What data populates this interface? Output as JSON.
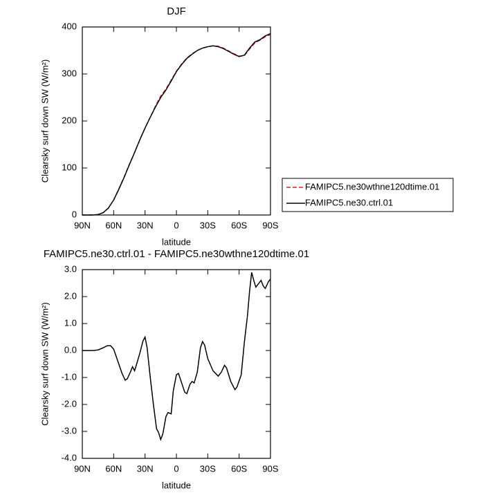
{
  "chart_data": [
    {
      "type": "line",
      "title": "DJF",
      "xlabel": "latitude",
      "ylabel": "Clearsky surf down SW (W/m²)",
      "x": [
        90,
        85,
        80,
        75,
        70,
        65,
        60,
        55,
        50,
        45,
        40,
        35,
        30,
        25,
        20,
        15,
        10,
        5,
        0,
        -5,
        -10,
        -15,
        -20,
        -25,
        -30,
        -35,
        -40,
        -45,
        -50,
        -55,
        -60,
        -65,
        -70,
        -75,
        -80,
        -85,
        -90
      ],
      "series": [
        {
          "name": "FAMIPC5.ne30wthne120dtime.01",
          "color": "#e02020",
          "dashed": true,
          "values": [
            0,
            0,
            0,
            1,
            5,
            15,
            32,
            56,
            81,
            108,
            133,
            160,
            185,
            208,
            232,
            253,
            268,
            287,
            306,
            321,
            334,
            343,
            350,
            355,
            358,
            360,
            359,
            355,
            349,
            343,
            338,
            339,
            353,
            366,
            372,
            379,
            384
          ]
        },
        {
          "name": "FAMIPC5.ne30.ctrl.01",
          "color": "#000000",
          "dashed": false,
          "values": [
            0,
            0,
            0,
            1,
            5,
            15,
            32,
            55,
            80,
            107,
            133,
            160,
            185,
            208,
            230,
            250,
            266,
            285,
            305,
            320,
            333,
            342,
            350,
            355,
            358,
            360,
            358,
            354,
            348,
            342,
            337,
            340,
            355,
            368,
            373,
            381,
            386
          ]
        }
      ],
      "xlim": [
        90,
        -90
      ],
      "xticks": [
        {
          "value": 90,
          "label": "90N"
        },
        {
          "value": 60,
          "label": "60N"
        },
        {
          "value": 30,
          "label": "30N"
        },
        0,
        {
          "value": -30,
          "label": "30S"
        },
        {
          "value": -60,
          "label": "60S"
        },
        {
          "value": -90,
          "label": "90S"
        }
      ],
      "ylim": [
        0,
        400
      ],
      "yticks": [
        0,
        100,
        200,
        300,
        400
      ],
      "legend": "outside-right"
    },
    {
      "type": "line",
      "title": "FAMIPC5.ne30.ctrl.01 - FAMIPC5.ne30wthne120dtime.01",
      "xlabel": "latitude",
      "ylabel": "Clearsky surf down SW (W/m²)",
      "x": [
        90,
        80,
        75,
        70,
        66,
        63,
        60,
        56,
        52,
        49,
        47,
        44,
        42,
        40,
        38,
        35,
        32,
        30,
        28,
        25,
        22,
        19,
        17,
        15,
        13,
        10,
        8,
        5,
        3,
        0,
        -2,
        -5,
        -8,
        -10,
        -13,
        -15,
        -17,
        -20,
        -23,
        -25,
        -27,
        -30,
        -35,
        -40,
        -43,
        -46,
        -48,
        -52,
        -56,
        -58,
        -62,
        -65,
        -68,
        -70,
        -72,
        -74,
        -76,
        -78,
        -81,
        -83,
        -85,
        -88,
        -90
      ],
      "series": [
        {
          "name": "FAMIPC5.ne30.ctrl.01 - FAMIPC5.ne30wthne120dtime.01",
          "color": "#000000",
          "dashed": false,
          "values": [
            0,
            0,
            0.02,
            0.1,
            0.18,
            0.18,
            0.05,
            -0.4,
            -0.85,
            -1.1,
            -1.05,
            -0.8,
            -0.6,
            -0.75,
            -0.5,
            -0.1,
            0.35,
            0.5,
            0.1,
            -1.0,
            -2.0,
            -2.9,
            -3.05,
            -3.3,
            -3.1,
            -2.45,
            -2.3,
            -2.35,
            -1.5,
            -0.9,
            -0.85,
            -1.2,
            -1.55,
            -1.6,
            -1.25,
            -1.15,
            -1.2,
            -0.8,
            0.1,
            0.33,
            0.2,
            -0.3,
            -0.75,
            -0.95,
            -0.8,
            -0.55,
            -0.65,
            -1.15,
            -1.45,
            -1.35,
            -0.9,
            0.3,
            1.3,
            2.2,
            2.9,
            2.6,
            2.35,
            2.45,
            2.6,
            2.4,
            2.3,
            2.55,
            2.65
          ]
        }
      ],
      "xlim": [
        90,
        -90
      ],
      "xticks": [
        {
          "value": 90,
          "label": "90N"
        },
        {
          "value": 60,
          "label": "60N"
        },
        {
          "value": 30,
          "label": "30N"
        },
        0,
        {
          "value": -30,
          "label": "30S"
        },
        {
          "value": -60,
          "label": "60S"
        },
        {
          "value": -90,
          "label": "90S"
        }
      ],
      "ylim": [
        -4,
        3
      ],
      "yticks": [
        {
          "value": 3,
          "label": "3.0"
        },
        {
          "value": 2,
          "label": "2.0"
        },
        {
          "value": 1,
          "label": "1.0"
        },
        {
          "value": 0,
          "label": "0.0"
        },
        {
          "value": -1,
          "label": "-1.0"
        },
        {
          "value": -2,
          "label": "-2.0"
        },
        {
          "value": -3,
          "label": "-3.0"
        },
        {
          "value": -4,
          "label": "-4.0"
        }
      ]
    }
  ]
}
